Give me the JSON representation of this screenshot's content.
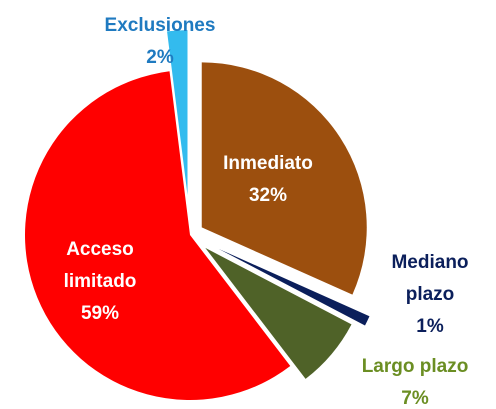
{
  "chart_data": {
    "type": "pie",
    "categories": [
      "Inmediato",
      "Mediano plazo",
      "Largo plazo",
      "Acceso limitado",
      "Exclusiones"
    ],
    "values": [
      32,
      1,
      7,
      59,
      2
    ],
    "value_labels": [
      "32%",
      "1%",
      "7%",
      "59%",
      "2%"
    ],
    "colors": [
      "#9c4f0e",
      "#0b1f5b",
      "#4f6228",
      "#ff0000",
      "#33bbee"
    ],
    "label_colors": [
      "#ffffff",
      "#0b1f5b",
      "#6b8e23",
      "#ffffff",
      "#1f7ac0"
    ]
  }
}
